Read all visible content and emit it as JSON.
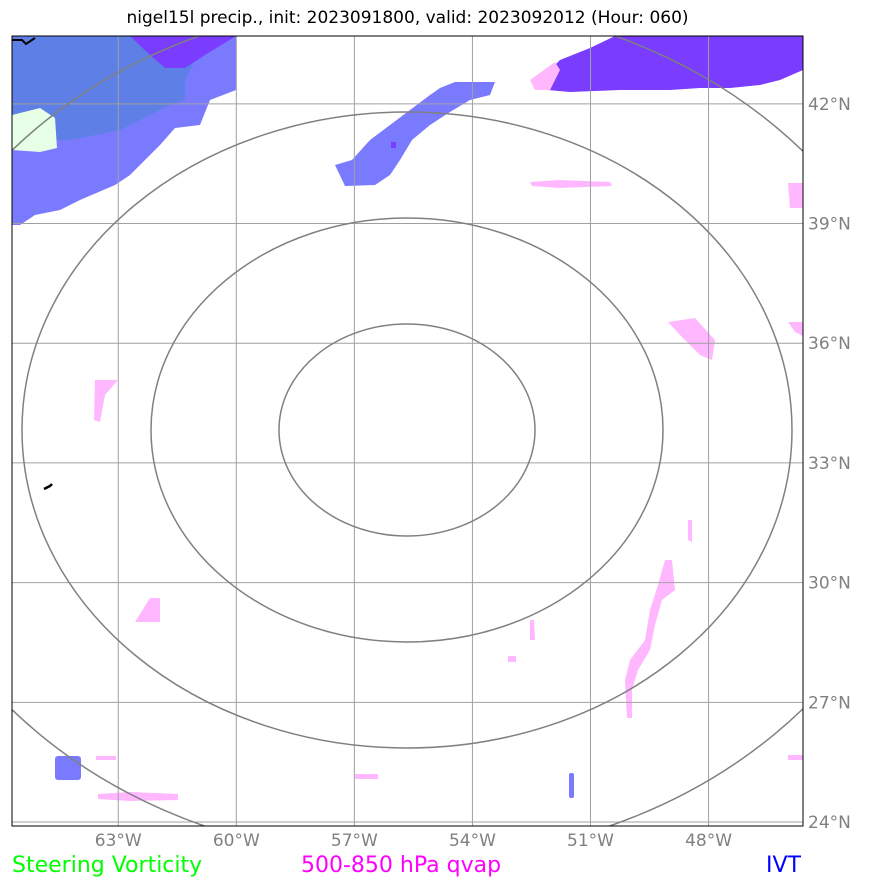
{
  "title": "nigel15l precip., init: 2023091800, valid: 2023092012 (Hour: 060)",
  "map": {
    "lon_ticks": [
      "63°W",
      "60°W",
      "57°W",
      "54°W",
      "51°W",
      "48°W"
    ],
    "lat_ticks": [
      "42°N",
      "39°N",
      "36°N",
      "33°N",
      "30°N",
      "27°N",
      "24°N"
    ],
    "lon_range": [
      -65.7,
      -45.6
    ],
    "lat_range": [
      23.9,
      43.7
    ],
    "grid": true,
    "range_ring_count": 4,
    "colors": {
      "ivt": "#7a7aff",
      "ivt_dark": "#7a3cff",
      "ivt_deep": "#5e7fe6",
      "qvap": "#ffb8ff",
      "vorticity": "#e6ffe6",
      "grid": "#a0a0a0",
      "rings": "#808080"
    }
  },
  "legend": {
    "vorticity": "Steering Vorticity",
    "qvap": "500-850 hPa qvap",
    "ivt": "IVT"
  }
}
